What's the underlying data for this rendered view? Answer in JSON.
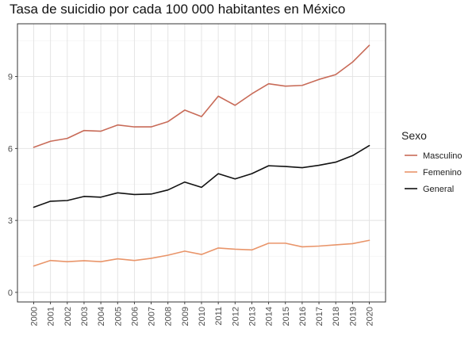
{
  "chart_data": {
    "type": "line",
    "title": "Tasa de suicidio por cada 100 000 habitantes en México",
    "xlabel": "",
    "ylabel": "",
    "x": [
      "2000",
      "2001",
      "2002",
      "2003",
      "2004",
      "2005",
      "2006",
      "2007",
      "2008",
      "2009",
      "2010",
      "2011",
      "2012",
      "2013",
      "2014",
      "2015",
      "2016",
      "2017",
      "2018",
      "2019",
      "2020"
    ],
    "yticks": [
      0,
      3,
      6,
      9
    ],
    "ylim": [
      -0.4,
      11.2
    ],
    "grid": true,
    "legend": {
      "title": "Sexo",
      "placement": "right"
    },
    "series": [
      {
        "name": "Masculino",
        "color": "#c86b58",
        "values": [
          6.05,
          6.3,
          6.42,
          6.75,
          6.72,
          6.98,
          6.9,
          6.9,
          7.12,
          7.6,
          7.33,
          8.18,
          7.8,
          8.28,
          8.7,
          8.6,
          8.63,
          8.88,
          9.08,
          9.6,
          10.3
        ]
      },
      {
        "name": "Femenino",
        "color": "#e9956a",
        "values": [
          1.1,
          1.33,
          1.28,
          1.32,
          1.28,
          1.4,
          1.33,
          1.42,
          1.55,
          1.72,
          1.58,
          1.85,
          1.8,
          1.77,
          2.05,
          2.05,
          1.9,
          1.93,
          1.98,
          2.03,
          2.17
        ]
      },
      {
        "name": "General",
        "color": "#111111",
        "values": [
          3.55,
          3.8,
          3.83,
          4.0,
          3.97,
          4.15,
          4.08,
          4.1,
          4.27,
          4.6,
          4.38,
          4.95,
          4.73,
          4.95,
          5.28,
          5.25,
          5.2,
          5.3,
          5.43,
          5.7,
          6.12
        ]
      }
    ]
  }
}
